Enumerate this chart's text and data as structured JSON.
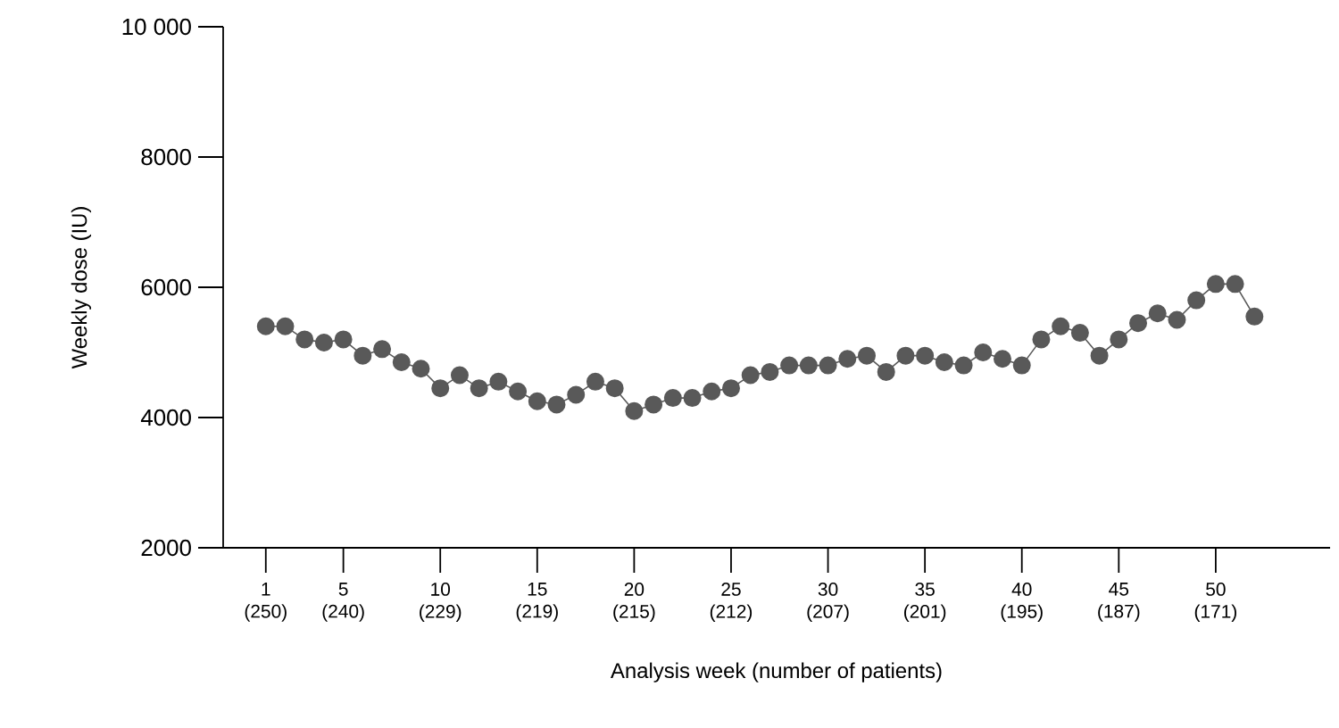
{
  "chart_data": {
    "type": "line",
    "xlabel": "Analysis week (number of patients)",
    "ylabel": "Weekly dose (IU)",
    "categories": [
      "1 (250)",
      null,
      null,
      null,
      "5 (240)",
      null,
      null,
      null,
      null,
      "10 (229)",
      null,
      null,
      null,
      null,
      "15 (219)",
      null,
      null,
      null,
      null,
      "20 (215)",
      null,
      null,
      null,
      null,
      "25 (212)",
      null,
      null,
      null,
      null,
      "30 (207)",
      null,
      null,
      null,
      null,
      "35 (201)",
      null,
      null,
      null,
      null,
      "40 (195)",
      null,
      null,
      null,
      null,
      "45 (187)",
      null,
      null,
      null,
      null,
      "50 (171)",
      null,
      null
    ],
    "series": [
      {
        "color": "#595959",
        "values": [
          5400,
          5400,
          5200,
          5150,
          5200,
          4950,
          5050,
          4850,
          4750,
          4450,
          4650,
          4450,
          4550,
          4400,
          4250,
          4200,
          4350,
          4550,
          4450,
          4100,
          4200,
          4300,
          4300,
          4400,
          4450,
          4650,
          4700,
          4800,
          4800,
          4800,
          4900,
          4950,
          4700,
          4950,
          4950,
          4850,
          4800,
          5000,
          4900,
          4800,
          5200,
          5400,
          5300,
          4950,
          5200,
          5450,
          5600,
          5500,
          5800,
          6050,
          6050,
          5550
        ]
      }
    ],
    "ylim": [
      2000,
      10000
    ],
    "yticks": [
      {
        "value": 2000,
        "label": "2000"
      },
      {
        "value": 4000,
        "label": "4000"
      },
      {
        "value": 6000,
        "label": "6000"
      },
      {
        "value": 8000,
        "label": "8000"
      },
      {
        "value": 10000,
        "label": "10 000"
      }
    ],
    "marker": "circle",
    "line_style": "solid",
    "grid": false
  }
}
